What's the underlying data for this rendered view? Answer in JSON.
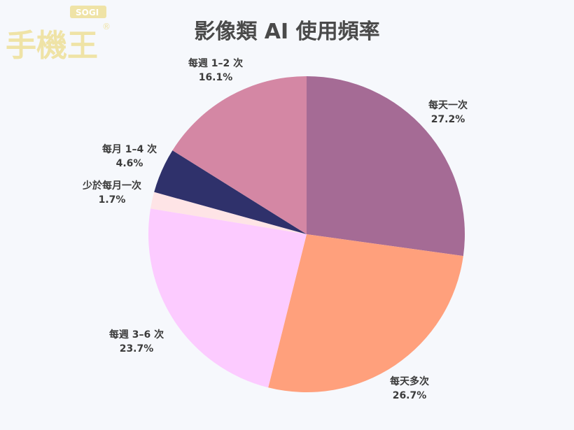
{
  "logo": {
    "brand_text": "手機王",
    "badge": "SOGI",
    "registered": "®"
  },
  "chart_data": {
    "type": "pie",
    "title": "影像類 AI 使用頻率",
    "start_angle_deg": 0,
    "direction": "clockwise",
    "slices": [
      {
        "label": "每天一次",
        "value": 27.2,
        "display": "27.2%",
        "color": "#a56b95"
      },
      {
        "label": "每天多次",
        "value": 26.7,
        "display": "26.7%",
        "color": "#ffa07c"
      },
      {
        "label": "每週 3–6 次",
        "value": 23.7,
        "display": "23.7%",
        "color": "#fccbff"
      },
      {
        "label": "少於每月一次",
        "value": 1.7,
        "display": "1.7%",
        "color": "#fee4e6"
      },
      {
        "label": "每月 1–4 次",
        "value": 4.6,
        "display": "4.6%",
        "color": "#2f316b"
      },
      {
        "label": "每週 1–2 次",
        "value": 16.1,
        "display": "16.1%",
        "color": "#d487a4"
      }
    ]
  }
}
